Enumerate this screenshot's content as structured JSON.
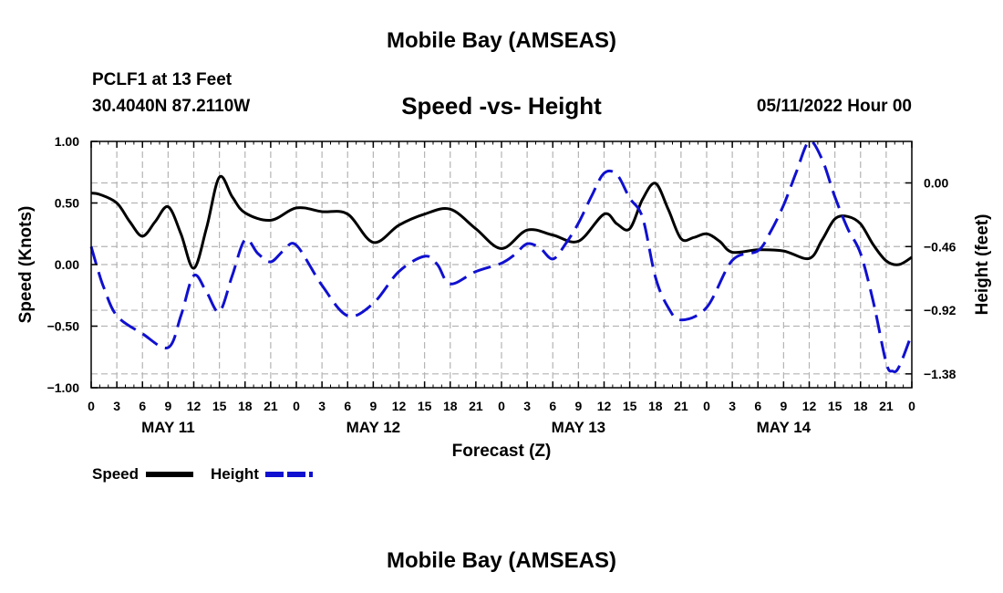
{
  "header": {
    "title": "Mobile Bay (AMSEAS)",
    "station": "PCLF1 at 13 Feet",
    "coords": "30.4040N  87.2110W",
    "subtitle": "Speed -vs- Height",
    "datetime": "05/11/2022 Hour 00"
  },
  "footer": {
    "title": "Mobile Bay (AMSEAS)"
  },
  "colors": {
    "speed": "#000000",
    "height": "#1010d0",
    "grid": "#b4b4b4"
  },
  "chart_data": {
    "type": "line",
    "xlabel": "Forecast (Z)",
    "ylabel_left": "Speed (Knots)",
    "ylabel_right": "Height (feet)",
    "x_range_hours": [
      0,
      96
    ],
    "x_tick_hours": [
      0,
      3,
      6,
      9,
      12,
      15,
      18,
      21,
      24,
      27,
      30,
      33,
      36,
      39,
      42,
      45,
      48,
      51,
      54,
      57,
      60,
      63,
      66,
      69,
      72,
      75,
      78,
      81,
      84,
      87,
      90,
      93,
      96
    ],
    "x_tick_labels": [
      "0",
      "3",
      "6",
      "9",
      "12",
      "15",
      "18",
      "21",
      "0",
      "3",
      "6",
      "9",
      "12",
      "15",
      "18",
      "21",
      "0",
      "3",
      "6",
      "9",
      "12",
      "15",
      "18",
      "21",
      "0",
      "3",
      "6",
      "9",
      "12",
      "15",
      "18",
      "21",
      "0"
    ],
    "date_labels": [
      {
        "label": "MAY 11",
        "hour": 9
      },
      {
        "label": "MAY 12",
        "hour": 33
      },
      {
        "label": "MAY 13",
        "hour": 57
      },
      {
        "label": "MAY 14",
        "hour": 81
      }
    ],
    "ylim_left": [
      -1.0,
      1.0
    ],
    "yticks_left": [
      1.0,
      0.5,
      0.0,
      -0.5,
      -1.0
    ],
    "ytick_labels_left": [
      "1.00",
      "0.50",
      "0.00",
      "−0.50",
      "−1.00"
    ],
    "ylim_right": [
      -1.48,
      0.3
    ],
    "yticks_right": [
      0.0,
      -0.46,
      -0.92,
      -1.38
    ],
    "ytick_labels_right": [
      "0.00",
      "−0.46",
      "−0.92",
      "−1.38"
    ],
    "legend": [
      {
        "name": "Speed",
        "style": "solid"
      },
      {
        "name": "Height",
        "style": "dashed"
      }
    ],
    "series": [
      {
        "name": "Speed",
        "axis": "left",
        "x": [
          0,
          1,
          3,
          4.5,
          6,
          7.5,
          9,
          10.5,
          12,
          13.5,
          15,
          16.5,
          18,
          21,
          24,
          27,
          30,
          33,
          36,
          39,
          42,
          45,
          48,
          51,
          54,
          57,
          60,
          61.5,
          63,
          64.5,
          66,
          67.5,
          69,
          70.5,
          72,
          73.5,
          75,
          78,
          81,
          84,
          85.5,
          87,
          88.5,
          90,
          91.5,
          93,
          94.5,
          96
        ],
        "values": [
          0.58,
          0.57,
          0.5,
          0.35,
          0.23,
          0.35,
          0.47,
          0.25,
          -0.03,
          0.3,
          0.71,
          0.55,
          0.42,
          0.36,
          0.46,
          0.43,
          0.41,
          0.18,
          0.32,
          0.41,
          0.45,
          0.29,
          0.13,
          0.28,
          0.24,
          0.19,
          0.41,
          0.33,
          0.29,
          0.53,
          0.66,
          0.45,
          0.21,
          0.22,
          0.25,
          0.19,
          0.1,
          0.12,
          0.11,
          0.05,
          0.2,
          0.37,
          0.39,
          0.33,
          0.16,
          0.03,
          0.0,
          0.06
        ]
      },
      {
        "name": "Height",
        "axis": "right",
        "x": [
          0,
          0.75,
          1.5,
          3,
          6,
          9,
          10.5,
          12,
          13.5,
          15,
          16.5,
          18,
          19.5,
          21,
          22.5,
          24,
          27,
          30,
          33,
          36,
          39,
          40.5,
          42,
          45,
          48,
          49.5,
          51,
          52.5,
          54,
          55.5,
          57,
          58.5,
          60,
          61.5,
          63,
          64.5,
          66,
          67.5,
          69,
          72,
          75,
          78,
          79.5,
          81,
          82.5,
          84,
          85.5,
          87,
          88.5,
          90,
          91.5,
          93,
          93.75,
          94.5,
          96
        ],
        "values": [
          -0.46,
          -0.62,
          -0.76,
          -0.96,
          -1.09,
          -1.19,
          -0.96,
          -0.67,
          -0.79,
          -0.93,
          -0.67,
          -0.41,
          -0.51,
          -0.57,
          -0.49,
          -0.45,
          -0.74,
          -0.96,
          -0.87,
          -0.64,
          -0.53,
          -0.59,
          -0.73,
          -0.64,
          -0.58,
          -0.52,
          -0.44,
          -0.47,
          -0.55,
          -0.44,
          -0.29,
          -0.1,
          0.07,
          0.06,
          -0.11,
          -0.25,
          -0.68,
          -0.9,
          -0.99,
          -0.9,
          -0.56,
          -0.49,
          -0.35,
          -0.16,
          0.08,
          0.3,
          0.17,
          -0.1,
          -0.33,
          -0.51,
          -0.86,
          -1.3,
          -1.36,
          -1.33,
          -1.09
        ]
      }
    ]
  }
}
